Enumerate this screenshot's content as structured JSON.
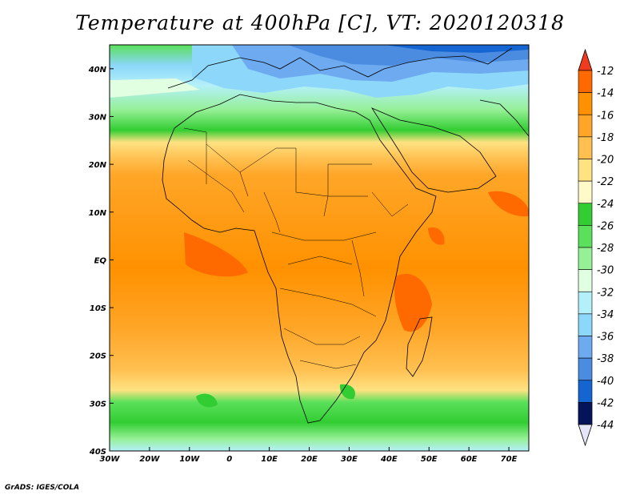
{
  "title": "Temperature at 400hPa [C], VT: 2020120318",
  "footer": "GrADS: IGES/COLA",
  "map": {
    "lon_range": [
      -30,
      75
    ],
    "lat_range": [
      -40,
      45
    ],
    "lon_ticks": [
      {
        "value": -30,
        "label": "30W"
      },
      {
        "value": -20,
        "label": "20W"
      },
      {
        "value": -10,
        "label": "10W"
      },
      {
        "value": 0,
        "label": "0"
      },
      {
        "value": 10,
        "label": "10E"
      },
      {
        "value": 20,
        "label": "20E"
      },
      {
        "value": 30,
        "label": "30E"
      },
      {
        "value": 40,
        "label": "40E"
      },
      {
        "value": 50,
        "label": "50E"
      },
      {
        "value": 60,
        "label": "60E"
      },
      {
        "value": 70,
        "label": "70E"
      }
    ],
    "lat_ticks": [
      {
        "value": 40,
        "label": "40N"
      },
      {
        "value": 30,
        "label": "30N"
      },
      {
        "value": 20,
        "label": "20N"
      },
      {
        "value": 10,
        "label": "10N"
      },
      {
        "value": 0,
        "label": "EQ"
      },
      {
        "value": -10,
        "label": "10S"
      },
      {
        "value": -20,
        "label": "20S"
      },
      {
        "value": -30,
        "label": "30S"
      },
      {
        "value": -40,
        "label": "40S"
      }
    ]
  },
  "colorbar": {
    "levels": [
      "-12",
      "-14",
      "-16",
      "-18",
      "-20",
      "-22",
      "-24",
      "-26",
      "-28",
      "-30",
      "-32",
      "-34",
      "-36",
      "-38",
      "-40",
      "-42",
      "-44"
    ],
    "colors": [
      "#ff6a00",
      "#ff9100",
      "#ffa628",
      "#ffc050",
      "#ffe282",
      "#fffac8",
      "#32cd32",
      "#5ae05a",
      "#96f096",
      "#e1ffe1",
      "#b4f0fa",
      "#8cd7fa",
      "#6eaaf0",
      "#4b8ce1",
      "#1464d2",
      "#0a50b4",
      "#0a2896"
    ],
    "top_color": "#f03c1e",
    "bottom_color": "#e6e6fa",
    "dark_color": "#05145a"
  }
}
